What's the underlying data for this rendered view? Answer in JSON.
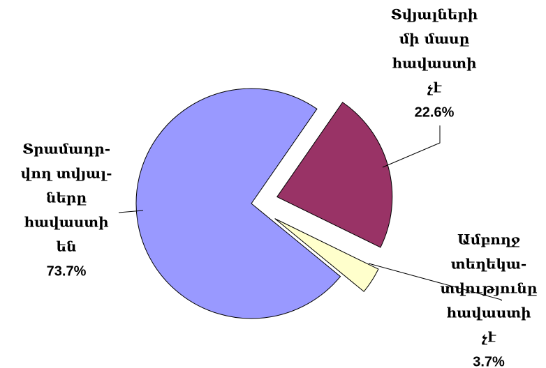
{
  "chart_data": {
    "type": "pie",
    "categories": [
      [
        "Տվյալների",
        "մի մասը",
        "հավաստի",
        "չէ"
      ],
      [
        "Ամբողջ",
        "տեղեկա-",
        "տվությունը",
        "հավաստի",
        "չէ"
      ],
      [
        "Տրամադր-",
        "վող տվյալ-",
        "ները",
        "հավաստի",
        "են"
      ]
    ],
    "values": [
      22.6,
      3.7,
      73.7
    ],
    "value_labels": [
      "22.6%",
      "3.7%",
      "73.7%"
    ],
    "colors": [
      "#993366",
      "#ffffcc",
      "#9999ff"
    ]
  }
}
